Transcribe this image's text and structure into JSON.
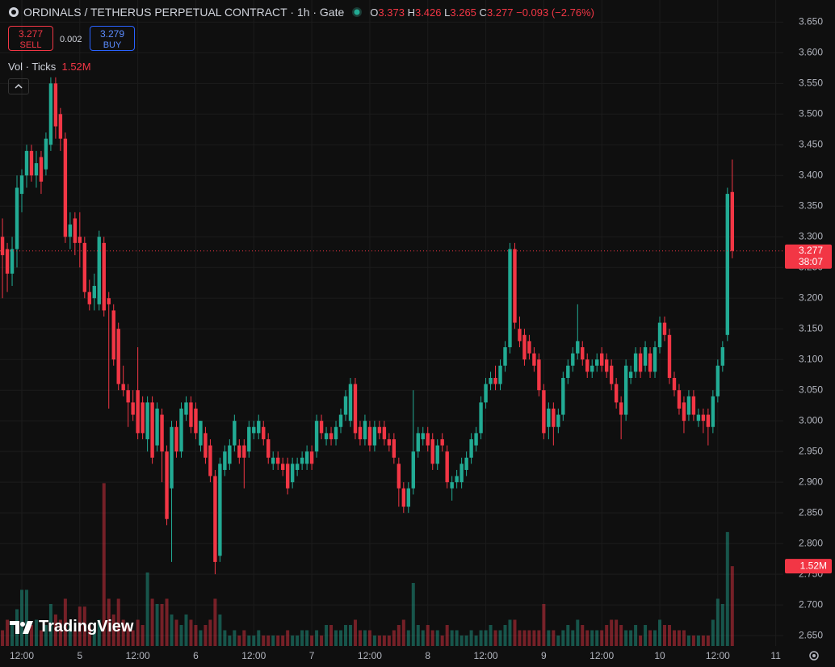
{
  "chart_data": {
    "type": "candlestick",
    "header": {
      "title": "ORDINALS / TETHERUS PERPETUAL CONTRACT · 1h · Gate",
      "o_label": "O",
      "open": "3.373",
      "h_label": "H",
      "high": "3.426",
      "l_label": "L",
      "low": "3.265",
      "c_label": "C",
      "close": "3.277",
      "change": "−0.093 (−2.76%)"
    },
    "trade": {
      "sell_price": "3.277",
      "sell": "SELL",
      "spread": "0.002",
      "buy_price": "3.279",
      "buy": "BUY"
    },
    "volume_title": "Vol · Ticks",
    "volume_last": "1.52M",
    "countdown": "38:07",
    "watermark": "TradingView",
    "up_color": "#22ab94",
    "down_color": "#f23645",
    "volume_up_color": "rgba(34,171,148,0.45)",
    "volume_down_color": "rgba(242,54,69,0.45)",
    "ylim": [
      2.633,
      3.686
    ],
    "volume_ylim": [
      0,
      12.3
    ],
    "grid": true,
    "yticks": [
      {
        "value": 3.65,
        "label": "3.650"
      },
      {
        "value": 3.6,
        "label": "3.600"
      },
      {
        "value": 3.55,
        "label": "3.550"
      },
      {
        "value": 3.5,
        "label": "3.500"
      },
      {
        "value": 3.45,
        "label": "3.450"
      },
      {
        "value": 3.4,
        "label": "3.400"
      },
      {
        "value": 3.35,
        "label": "3.350"
      },
      {
        "value": 3.3,
        "label": "3.300"
      },
      {
        "value": 3.25,
        "label": "3.250"
      },
      {
        "value": 3.2,
        "label": "3.200"
      },
      {
        "value": 3.15,
        "label": "3.150"
      },
      {
        "value": 3.1,
        "label": "3.100"
      },
      {
        "value": 3.05,
        "label": "3.050"
      },
      {
        "value": 3.0,
        "label": "3.000"
      },
      {
        "value": 2.95,
        "label": "2.950"
      },
      {
        "value": 2.9,
        "label": "2.900"
      },
      {
        "value": 2.85,
        "label": "2.850"
      },
      {
        "value": 2.8,
        "label": "2.800"
      },
      {
        "value": 2.75,
        "label": "2.750"
      },
      {
        "value": 2.7,
        "label": "2.700"
      },
      {
        "value": 2.65,
        "label": "2.650"
      }
    ],
    "categories": [
      null,
      null,
      null,
      null,
      "12:00",
      null,
      null,
      null,
      null,
      null,
      null,
      null,
      null,
      null,
      null,
      null,
      "5",
      null,
      null,
      null,
      null,
      null,
      null,
      null,
      null,
      null,
      null,
      null,
      "12:00",
      null,
      null,
      null,
      null,
      null,
      null,
      null,
      null,
      null,
      null,
      null,
      "6",
      null,
      null,
      null,
      null,
      null,
      null,
      null,
      null,
      null,
      null,
      null,
      "12:00",
      null,
      null,
      null,
      null,
      null,
      null,
      null,
      null,
      null,
      null,
      null,
      "7",
      null,
      null,
      null,
      null,
      null,
      null,
      null,
      null,
      null,
      null,
      null,
      "12:00",
      null,
      null,
      null,
      null,
      null,
      null,
      null,
      null,
      null,
      null,
      null,
      "8",
      null,
      null,
      null,
      null,
      null,
      null,
      null,
      null,
      null,
      null,
      null,
      "12:00",
      null,
      null,
      null,
      null,
      null,
      null,
      null,
      null,
      null,
      null,
      null,
      "9",
      null,
      null,
      null,
      null,
      null,
      null,
      null,
      null,
      null,
      null,
      null,
      "12:00",
      null,
      null,
      null,
      null,
      null,
      null,
      null,
      null,
      null,
      null,
      null,
      "10",
      null,
      null,
      null,
      null,
      null,
      null,
      null,
      null,
      null,
      null,
      null,
      "12:00",
      null,
      null,
      null,
      null,
      null,
      null,
      null,
      null,
      null,
      null,
      null,
      "11"
    ],
    "ohlc": [
      [
        3.3,
        3.33,
        3.2,
        3.27
      ],
      [
        3.28,
        3.29,
        3.21,
        3.24
      ],
      [
        3.24,
        3.3,
        3.22,
        3.28
      ],
      [
        3.28,
        3.4,
        3.25,
        3.38
      ],
      [
        3.37,
        3.41,
        3.34,
        3.4
      ],
      [
        3.4,
        3.45,
        3.38,
        3.44
      ],
      [
        3.44,
        3.45,
        3.39,
        3.4
      ],
      [
        3.4,
        3.44,
        3.38,
        3.42
      ],
      [
        3.43,
        3.44,
        3.37,
        3.39
      ],
      [
        3.41,
        3.47,
        3.4,
        3.46
      ],
      [
        3.45,
        3.56,
        3.44,
        3.55
      ],
      [
        3.55,
        3.56,
        3.46,
        3.48
      ],
      [
        3.5,
        3.51,
        3.44,
        3.46
      ],
      [
        3.46,
        3.47,
        3.29,
        3.3
      ],
      [
        3.3,
        3.34,
        3.28,
        3.32
      ],
      [
        3.33,
        3.34,
        3.27,
        3.29
      ],
      [
        3.3,
        3.34,
        3.25,
        3.29
      ],
      [
        3.29,
        3.3,
        3.2,
        3.21
      ],
      [
        3.21,
        3.23,
        3.18,
        3.19
      ],
      [
        3.2,
        3.24,
        3.18,
        3.22
      ],
      [
        3.19,
        3.31,
        3.18,
        3.3
      ],
      [
        3.29,
        3.3,
        3.17,
        3.18
      ],
      [
        3.2,
        3.21,
        3.02,
        3.19
      ],
      [
        3.18,
        3.19,
        3.09,
        3.1
      ],
      [
        3.15,
        3.16,
        3.05,
        3.06
      ],
      [
        3.06,
        3.09,
        3.04,
        3.05
      ],
      [
        3.05,
        3.06,
        2.99,
        3.03
      ],
      [
        3.03,
        3.05,
        3.0,
        3.01
      ],
      [
        3.05,
        3.12,
        2.97,
        2.98
      ],
      [
        3.03,
        3.04,
        2.97,
        2.98
      ],
      [
        2.97,
        3.04,
        2.95,
        3.03
      ],
      [
        3.03,
        3.04,
        2.93,
        2.94
      ],
      [
        2.96,
        3.03,
        2.95,
        3.02
      ],
      [
        3.01,
        3.02,
        2.9,
        2.95
      ],
      [
        2.95,
        2.96,
        2.83,
        2.84
      ],
      [
        2.89,
        3.0,
        2.77,
        2.99
      ],
      [
        2.99,
        3.0,
        2.94,
        2.95
      ],
      [
        2.95,
        3.03,
        2.94,
        3.02
      ],
      [
        3.01,
        3.04,
        3.0,
        3.03
      ],
      [
        3.03,
        3.04,
        2.98,
        2.99
      ],
      [
        3.02,
        3.03,
        2.97,
        2.98
      ],
      [
        2.96,
        3.0,
        2.95,
        3.0
      ],
      [
        2.98,
        2.99,
        2.93,
        2.94
      ],
      [
        2.96,
        2.97,
        2.9,
        2.91
      ],
      [
        2.91,
        2.92,
        2.75,
        2.77
      ],
      [
        2.78,
        2.94,
        2.77,
        2.93
      ],
      [
        2.92,
        2.96,
        2.91,
        2.95
      ],
      [
        2.93,
        2.97,
        2.92,
        2.96
      ],
      [
        2.96,
        3.01,
        2.95,
        3.0
      ],
      [
        2.96,
        2.97,
        2.93,
        2.94
      ],
      [
        2.96,
        2.97,
        2.89,
        2.94
      ],
      [
        2.95,
        3.0,
        2.94,
        2.99
      ],
      [
        2.98,
        3.0,
        2.97,
        2.99
      ],
      [
        2.98,
        3.01,
        2.97,
        3.0
      ],
      [
        2.99,
        3.0,
        2.96,
        2.97
      ],
      [
        2.97,
        2.98,
        2.93,
        2.94
      ],
      [
        2.93,
        2.95,
        2.92,
        2.94
      ],
      [
        2.94,
        2.95,
        2.92,
        2.93
      ],
      [
        2.93,
        2.94,
        2.91,
        2.92
      ],
      [
        2.93,
        2.94,
        2.88,
        2.89
      ],
      [
        2.9,
        2.94,
        2.89,
        2.93
      ],
      [
        2.92,
        2.94,
        2.91,
        2.93
      ],
      [
        2.93,
        2.95,
        2.92,
        2.94
      ],
      [
        2.93,
        2.96,
        2.92,
        2.95
      ],
      [
        2.95,
        2.96,
        2.92,
        2.93
      ],
      [
        2.95,
        3.01,
        2.94,
        3.0
      ],
      [
        3.0,
        3.01,
        2.97,
        2.98
      ],
      [
        2.97,
        2.99,
        2.96,
        2.98
      ],
      [
        2.98,
        2.99,
        2.96,
        2.97
      ],
      [
        2.97,
        3.0,
        2.96,
        2.99
      ],
      [
        2.99,
        3.02,
        2.98,
        3.01
      ],
      [
        3.01,
        3.05,
        3.0,
        3.04
      ],
      [
        3.0,
        3.07,
        2.99,
        3.06
      ],
      [
        3.06,
        3.07,
        2.97,
        2.98
      ],
      [
        2.99,
        3.0,
        2.96,
        2.97
      ],
      [
        2.97,
        3.01,
        2.96,
        3.0
      ],
      [
        2.99,
        3.0,
        2.95,
        2.96
      ],
      [
        2.96,
        3.0,
        2.95,
        2.99
      ],
      [
        2.99,
        3.0,
        2.97,
        2.98
      ],
      [
        2.99,
        3.0,
        2.96,
        2.97
      ],
      [
        2.97,
        2.98,
        2.95,
        2.96
      ],
      [
        2.97,
        2.98,
        2.93,
        2.94
      ],
      [
        2.93,
        2.94,
        2.86,
        2.89
      ],
      [
        2.89,
        2.9,
        2.85,
        2.86
      ],
      [
        2.86,
        2.9,
        2.85,
        2.89
      ],
      [
        2.89,
        3.05,
        2.88,
        2.95
      ],
      [
        2.95,
        2.99,
        2.94,
        2.98
      ],
      [
        2.97,
        2.99,
        2.96,
        2.98
      ],
      [
        2.98,
        2.99,
        2.95,
        2.96
      ],
      [
        2.97,
        2.98,
        2.92,
        2.93
      ],
      [
        2.93,
        2.97,
        2.92,
        2.96
      ],
      [
        2.97,
        2.98,
        2.95,
        2.96
      ],
      [
        2.95,
        2.96,
        2.89,
        2.9
      ],
      [
        2.89,
        2.91,
        2.87,
        2.9
      ],
      [
        2.9,
        2.92,
        2.89,
        2.91
      ],
      [
        2.9,
        2.94,
        2.89,
        2.93
      ],
      [
        2.92,
        2.95,
        2.91,
        2.94
      ],
      [
        2.94,
        2.98,
        2.93,
        2.97
      ],
      [
        2.96,
        2.99,
        2.95,
        2.98
      ],
      [
        2.98,
        3.04,
        2.97,
        3.03
      ],
      [
        3.03,
        3.07,
        3.02,
        3.06
      ],
      [
        3.06,
        3.08,
        3.05,
        3.07
      ],
      [
        3.07,
        3.09,
        3.05,
        3.06
      ],
      [
        3.06,
        3.1,
        3.05,
        3.09
      ],
      [
        3.09,
        3.13,
        3.08,
        3.12
      ],
      [
        3.12,
        3.29,
        3.11,
        3.28
      ],
      [
        3.28,
        3.29,
        3.15,
        3.16
      ],
      [
        3.15,
        3.17,
        3.12,
        3.13
      ],
      [
        3.14,
        3.15,
        3.09,
        3.1
      ],
      [
        3.13,
        3.14,
        3.1,
        3.11
      ],
      [
        3.11,
        3.12,
        3.08,
        3.09
      ],
      [
        3.1,
        3.11,
        3.04,
        3.05
      ],
      [
        3.05,
        3.06,
        2.97,
        2.98
      ],
      [
        2.99,
        3.03,
        2.97,
        3.02
      ],
      [
        3.02,
        3.03,
        2.96,
        2.99
      ],
      [
        2.99,
        3.02,
        2.98,
        3.01
      ],
      [
        3.01,
        3.08,
        3.0,
        3.07
      ],
      [
        3.07,
        3.1,
        3.06,
        3.09
      ],
      [
        3.09,
        3.12,
        3.08,
        3.11
      ],
      [
        3.11,
        3.19,
        3.1,
        3.13
      ],
      [
        3.12,
        3.13,
        3.09,
        3.1
      ],
      [
        3.1,
        3.11,
        3.07,
        3.08
      ],
      [
        3.08,
        3.1,
        3.07,
        3.09
      ],
      [
        3.09,
        3.11,
        3.08,
        3.1
      ],
      [
        3.11,
        3.12,
        3.08,
        3.09
      ],
      [
        3.1,
        3.11,
        3.07,
        3.08
      ],
      [
        3.09,
        3.1,
        3.05,
        3.06
      ],
      [
        3.06,
        3.07,
        3.02,
        3.03
      ],
      [
        3.03,
        3.04,
        2.97,
        3.01
      ],
      [
        3.01,
        3.1,
        3.0,
        3.09
      ],
      [
        3.07,
        3.09,
        3.06,
        3.08
      ],
      [
        3.08,
        3.12,
        3.07,
        3.11
      ],
      [
        3.11,
        3.12,
        3.07,
        3.08
      ],
      [
        3.09,
        3.13,
        3.08,
        3.12
      ],
      [
        3.11,
        3.12,
        3.07,
        3.08
      ],
      [
        3.08,
        3.13,
        3.07,
        3.12
      ],
      [
        3.12,
        3.17,
        3.11,
        3.16
      ],
      [
        3.16,
        3.17,
        3.13,
        3.14
      ],
      [
        3.14,
        3.15,
        3.06,
        3.07
      ],
      [
        3.07,
        3.08,
        3.04,
        3.05
      ],
      [
        3.05,
        3.06,
        3.01,
        3.02
      ],
      [
        3.03,
        3.04,
        2.98,
        3.0
      ],
      [
        3.01,
        3.05,
        3.0,
        3.04
      ],
      [
        3.04,
        3.05,
        3.0,
        3.01
      ],
      [
        3.0,
        3.02,
        2.99,
        3.01
      ],
      [
        3.01,
        3.02,
        2.98,
        3.0
      ],
      [
        3.01,
        3.02,
        2.96,
        2.99
      ],
      [
        2.99,
        3.05,
        2.98,
        3.04
      ],
      [
        3.04,
        3.1,
        3.03,
        3.09
      ],
      [
        3.09,
        3.13,
        3.08,
        3.12
      ],
      [
        3.14,
        3.38,
        3.13,
        3.37
      ],
      [
        3.373,
        3.426,
        3.265,
        3.277
      ],
      null,
      null,
      null,
      null,
      null,
      null,
      null,
      null,
      null
    ],
    "volume": [
      0.3,
      0.5,
      0.4,
      0.7,
      1.07,
      1.07,
      0.4,
      0.5,
      0.3,
      0.4,
      0.8,
      0.6,
      0.5,
      0.9,
      0.4,
      0.3,
      0.75,
      0.75,
      0.4,
      0.3,
      0.5,
      3.1,
      0.9,
      0.6,
      0.9,
      0.5,
      0.4,
      0.3,
      0.5,
      0.4,
      1.4,
      0.9,
      0.8,
      0.8,
      0.9,
      0.6,
      0.5,
      0.4,
      0.6,
      0.5,
      0.4,
      0.3,
      0.4,
      0.5,
      0.9,
      0.6,
      0.3,
      0.2,
      0.3,
      0.2,
      0.3,
      0.2,
      0.2,
      0.3,
      0.2,
      0.2,
      0.2,
      0.2,
      0.2,
      0.3,
      0.2,
      0.2,
      0.3,
      0.3,
      0.2,
      0.3,
      0.2,
      0.4,
      0.4,
      0.3,
      0.3,
      0.4,
      0.4,
      0.5,
      0.3,
      0.3,
      0.3,
      0.2,
      0.2,
      0.2,
      0.2,
      0.3,
      0.4,
      0.5,
      0.3,
      1.2,
      0.4,
      0.3,
      0.4,
      0.3,
      0.3,
      0.2,
      0.4,
      0.3,
      0.3,
      0.2,
      0.2,
      0.3,
      0.2,
      0.3,
      0.3,
      0.4,
      0.3,
      0.3,
      0.4,
      0.5,
      0.5,
      0.3,
      0.3,
      0.3,
      0.3,
      0.3,
      0.8,
      0.3,
      0.3,
      0.2,
      0.3,
      0.4,
      0.3,
      0.5,
      0.4,
      0.3,
      0.3,
      0.3,
      0.3,
      0.4,
      0.5,
      0.5,
      0.4,
      0.3,
      0.3,
      0.4,
      0.2,
      0.4,
      0.3,
      0.3,
      0.5,
      0.4,
      0.4,
      0.3,
      0.3,
      0.3,
      0.2,
      0.2,
      0.2,
      0.2,
      0.2,
      0.5,
      0.9,
      0.8,
      2.17,
      1.52,
      null,
      null,
      null,
      null,
      null,
      null,
      null,
      null,
      null
    ]
  }
}
